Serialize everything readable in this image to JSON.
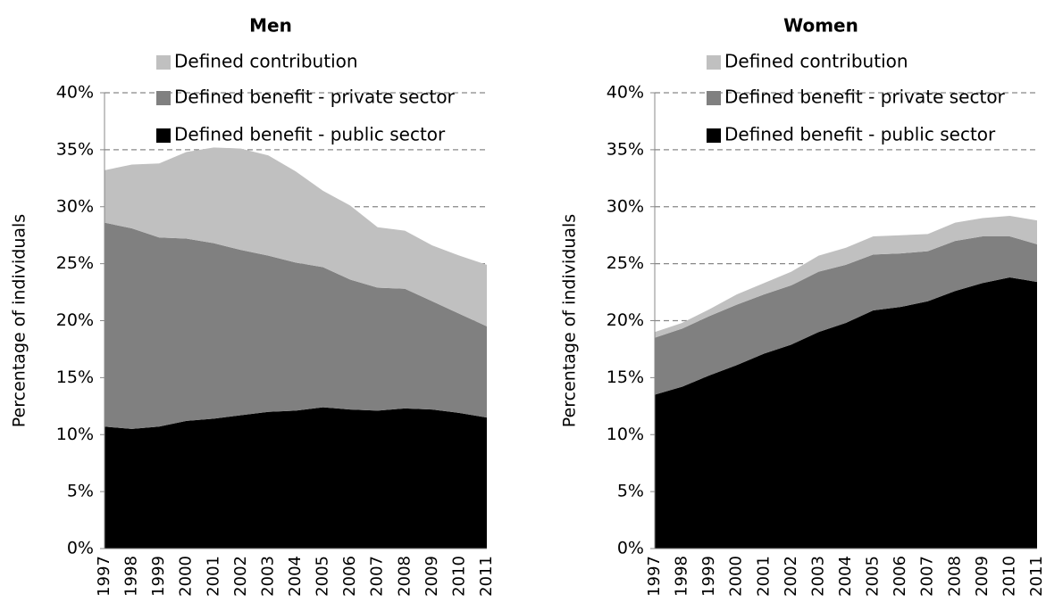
{
  "chart_data": [
    {
      "type": "area",
      "stacked": true,
      "title": "Men",
      "ylabel": "Percentage of individuals",
      "categories": [
        "1997",
        "1998",
        "1999",
        "2000",
        "2001",
        "2002",
        "2003",
        "2004",
        "2005",
        "2006",
        "2007",
        "2008",
        "2009",
        "2010",
        "2011"
      ],
      "series": [
        {
          "name": "Defined benefit - public sector",
          "color": "#000000",
          "values": [
            10.7,
            10.5,
            10.7,
            11.2,
            11.4,
            11.7,
            12.0,
            12.1,
            12.4,
            12.2,
            12.1,
            12.3,
            12.2,
            11.9,
            11.5
          ]
        },
        {
          "name": "Defined benefit - private sector",
          "color": "#808080",
          "values": [
            17.9,
            17.6,
            16.6,
            16.0,
            15.4,
            14.5,
            13.7,
            13.0,
            12.3,
            11.4,
            10.8,
            10.5,
            9.5,
            8.7,
            8.0
          ]
        },
        {
          "name": "Defined contribution",
          "color": "#c0c0c0",
          "values": [
            4.6,
            5.6,
            6.5,
            7.6,
            8.4,
            8.9,
            8.8,
            8.0,
            6.7,
            6.5,
            5.3,
            5.1,
            4.9,
            5.1,
            5.4
          ]
        }
      ],
      "ylim": [
        0,
        40
      ],
      "yticks": [
        {
          "value": 0,
          "label": "0%"
        },
        {
          "value": 5,
          "label": "5%"
        },
        {
          "value": 10,
          "label": "10%"
        },
        {
          "value": 15,
          "label": "15%"
        },
        {
          "value": 20,
          "label": "20%"
        },
        {
          "value": 25,
          "label": "25%"
        },
        {
          "value": 30,
          "label": "30%"
        },
        {
          "value": 35,
          "label": "35%"
        },
        {
          "value": 40,
          "label": "40%"
        }
      ],
      "grid": true,
      "legend": "top"
    },
    {
      "type": "area",
      "stacked": true,
      "title": "Women",
      "ylabel": "Percentage of individuals",
      "categories": [
        "1997",
        "1998",
        "1999",
        "2000",
        "2001",
        "2002",
        "2003",
        "2004",
        "2005",
        "2006",
        "2007",
        "2008",
        "2009",
        "2010",
        "2011"
      ],
      "series": [
        {
          "name": "Defined benefit - public sector",
          "color": "#000000",
          "values": [
            13.5,
            14.2,
            15.2,
            16.1,
            17.1,
            17.9,
            19.0,
            19.8,
            20.9,
            21.2,
            21.7,
            22.6,
            23.3,
            23.8,
            23.4
          ]
        },
        {
          "name": "Defined benefit - private sector",
          "color": "#808080",
          "values": [
            5.0,
            5.1,
            5.2,
            5.3,
            5.2,
            5.2,
            5.3,
            5.1,
            4.9,
            4.7,
            4.4,
            4.4,
            4.1,
            3.6,
            3.3
          ]
        },
        {
          "name": "Defined contribution",
          "color": "#c0c0c0",
          "values": [
            0.5,
            0.5,
            0.6,
            0.9,
            1.0,
            1.2,
            1.4,
            1.5,
            1.6,
            1.6,
            1.5,
            1.6,
            1.6,
            1.8,
            2.1
          ]
        }
      ],
      "ylim": [
        0,
        40
      ],
      "yticks": [
        {
          "value": 0,
          "label": "0%"
        },
        {
          "value": 5,
          "label": "5%"
        },
        {
          "value": 10,
          "label": "10%"
        },
        {
          "value": 15,
          "label": "15%"
        },
        {
          "value": 20,
          "label": "20%"
        },
        {
          "value": 25,
          "label": "25%"
        },
        {
          "value": 30,
          "label": "30%"
        },
        {
          "value": 35,
          "label": "35%"
        },
        {
          "value": 40,
          "label": "40%"
        }
      ],
      "grid": true,
      "legend": "top"
    }
  ]
}
